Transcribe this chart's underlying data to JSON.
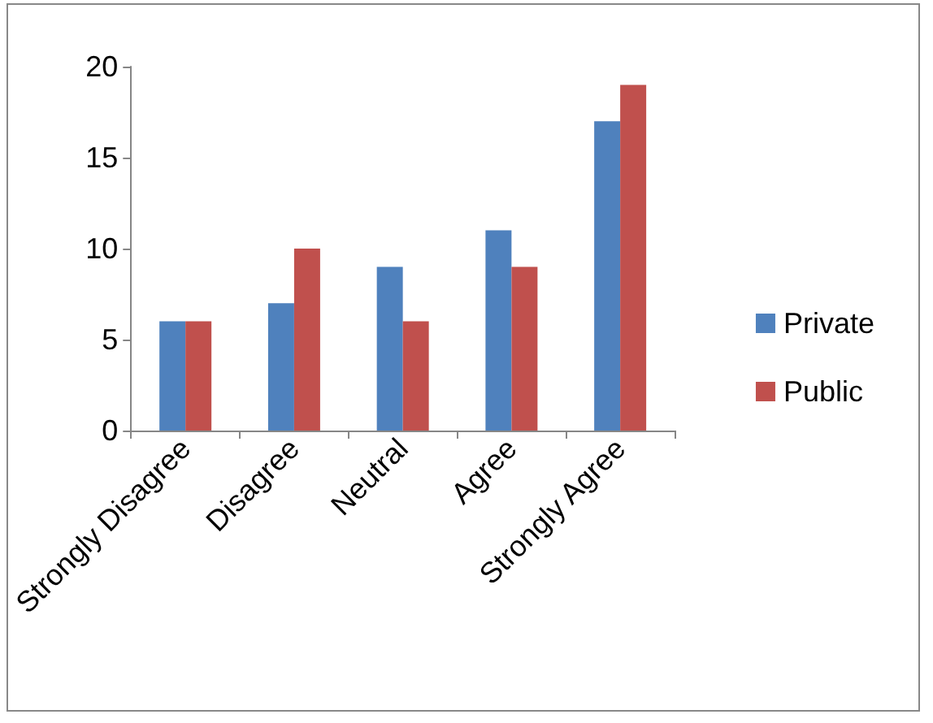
{
  "chart_data": {
    "type": "bar",
    "categories": [
      "Strongly Disagree",
      "Disagree",
      "Neutral",
      "Agree",
      "Strongly Agree"
    ],
    "series": [
      {
        "name": "Private",
        "color": "#4f81bd",
        "values": [
          6,
          7,
          9,
          11,
          17
        ]
      },
      {
        "name": "Public",
        "color": "#c0504d",
        "values": [
          6,
          10,
          6,
          9,
          19
        ]
      }
    ],
    "ylim": [
      0,
      20
    ],
    "yticks": [
      0,
      5,
      10,
      15,
      20
    ],
    "grid": false,
    "legend": "right"
  }
}
